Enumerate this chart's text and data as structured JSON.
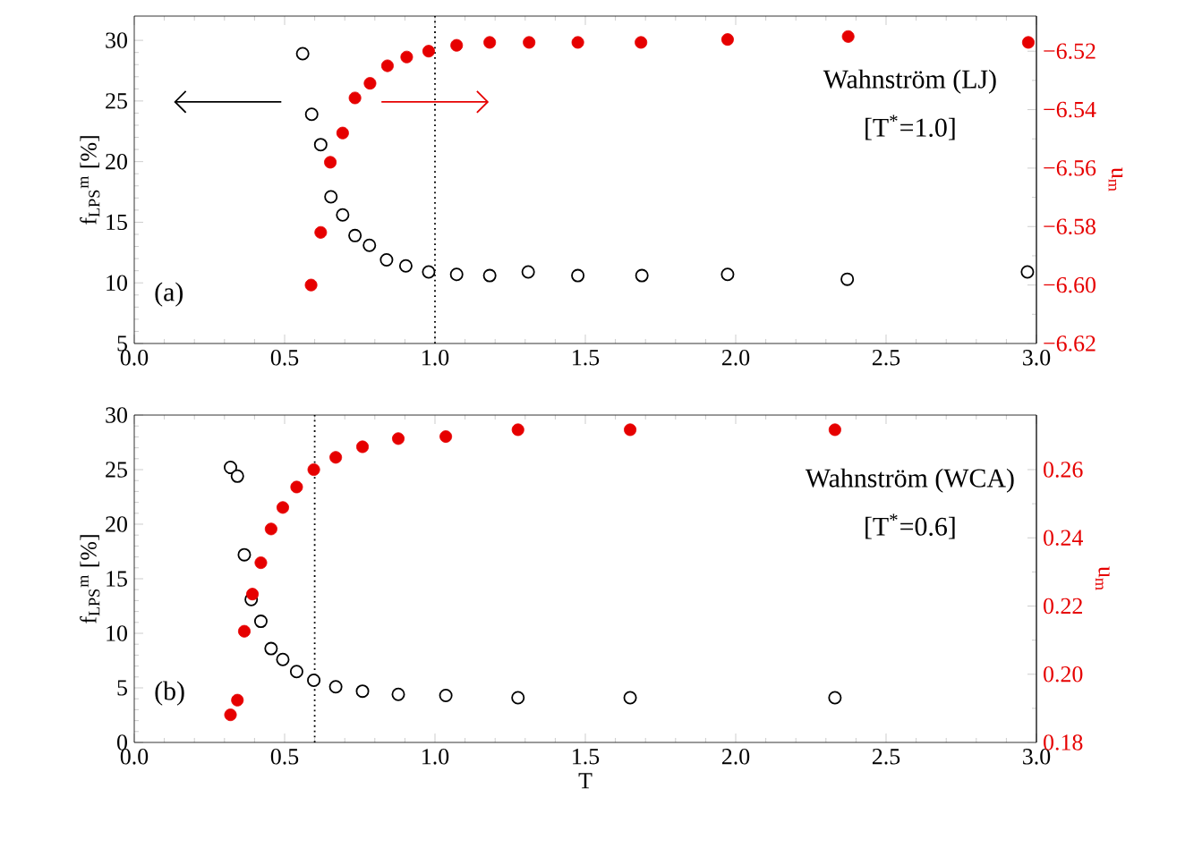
{
  "chart_data": [
    {
      "type": "scatter",
      "ylabel": "f$_{LPS}$$^{m}$ [%]",
      "y2label": "u$_{m}$",
      "annotations": [
        "Wahnström (LJ)",
        "[T$^{*}$=1.0]",
        "(a)"
      ],
      "xlim": [
        0,
        3
      ],
      "xticks": [
        {
          "value": 0,
          "label": "0.0"
        },
        0.5,
        {
          "value": 1,
          "label": "1.0"
        },
        1.5,
        {
          "value": 2,
          "label": "2.0"
        },
        2.5,
        {
          "value": 3,
          "label": "3.0"
        }
      ],
      "ylim": [
        5,
        32
      ],
      "yticks": [
        5,
        10,
        15,
        20,
        25,
        30
      ],
      "y2lim": [
        -6.62,
        -6.508
      ],
      "y2ticks": [
        {
          "value": -6.62,
          "label": "−6.62"
        },
        {
          "value": -6.6,
          "label": "−6.60"
        },
        {
          "value": -6.58,
          "label": "−6.58"
        },
        {
          "value": -6.56,
          "label": "−6.56"
        },
        {
          "value": -6.54,
          "label": "−6.54"
        },
        {
          "value": -6.52,
          "label": "−6.52"
        }
      ],
      "ref_lines": [
        {
          "axis": "x",
          "value": 1.0,
          "line_style": "dotted",
          "color": "#000000"
        }
      ],
      "series": [
        {
          "color": "#000000",
          "x": [
            0.56,
            0.59,
            0.62,
            0.654,
            0.693,
            0.734,
            0.782,
            0.839,
            0.903,
            0.979,
            1.072,
            1.182,
            1.31,
            1.475,
            1.688,
            1.973,
            2.371,
            2.97
          ],
          "values": [
            28.9,
            23.9,
            21.4,
            17.1,
            15.6,
            13.9,
            13.1,
            11.9,
            11.4,
            10.9,
            10.7,
            10.6,
            10.9,
            10.6,
            10.6,
            10.7,
            10.3,
            10.9
          ]
        },
        {
          "color": "#e60000",
          "axis": "y2",
          "x": [
            0.588,
            0.62,
            0.652,
            0.693,
            0.734,
            0.784,
            0.842,
            0.906,
            0.979,
            1.072,
            1.182,
            1.313,
            1.475,
            1.685,
            1.973,
            2.374,
            2.973
          ],
          "values": [
            -6.6,
            -6.582,
            -6.558,
            -6.548,
            -6.536,
            -6.531,
            -6.525,
            -6.522,
            -6.52,
            -6.518,
            -6.517,
            -6.517,
            -6.517,
            -6.517,
            -6.516,
            -6.515,
            -6.517
          ]
        }
      ]
    },
    {
      "type": "scatter",
      "xlabel": "T",
      "ylabel": "f$_{LPS}$$^{m}$ [%]",
      "y2label": "u$_{m}$",
      "annotations": [
        "Wahnström (WCA)",
        "[T$^{*}$=0.6]",
        "(b)"
      ],
      "xlim": [
        0,
        3
      ],
      "xticks": [
        {
          "value": 0,
          "label": "0.0"
        },
        0.5,
        {
          "value": 1,
          "label": "1.0"
        },
        1.5,
        {
          "value": 2,
          "label": "2.0"
        },
        2.5,
        {
          "value": 3,
          "label": "3.0"
        }
      ],
      "ylim": [
        0,
        30
      ],
      "yticks": [
        0,
        5,
        10,
        15,
        20,
        25,
        30
      ],
      "y2lim": [
        0.18,
        0.276
      ],
      "y2ticks": [
        0.18,
        {
          "value": 0.2,
          "label": "0.20"
        },
        0.22,
        0.24,
        0.26
      ],
      "ref_lines": [
        {
          "axis": "x",
          "value": 0.6,
          "line_style": "dotted",
          "color": "#000000"
        }
      ],
      "series": [
        {
          "color": "#000000",
          "x": [
            0.32,
            0.343,
            0.366,
            0.389,
            0.421,
            0.455,
            0.494,
            0.54,
            0.597,
            0.67,
            0.759,
            0.878,
            1.036,
            1.276,
            1.649,
            2.33
          ],
          "values": [
            25.2,
            24.4,
            17.2,
            13.1,
            11.1,
            8.6,
            7.6,
            6.5,
            5.7,
            5.1,
            4.7,
            4.4,
            4.3,
            4.1,
            4.1,
            4.1
          ]
        },
        {
          "color": "#e60000",
          "axis": "y2",
          "x": [
            0.32,
            0.343,
            0.366,
            0.393,
            0.421,
            0.455,
            0.494,
            0.54,
            0.597,
            0.67,
            0.759,
            0.878,
            1.036,
            1.276,
            1.649,
            2.33
          ],
          "values": [
            0.1881,
            0.1924,
            0.2126,
            0.2235,
            0.2327,
            0.2426,
            0.2489,
            0.2549,
            0.26,
            0.2636,
            0.2667,
            0.2691,
            0.2697,
            0.2717,
            0.2717,
            0.2717
          ]
        }
      ]
    }
  ]
}
